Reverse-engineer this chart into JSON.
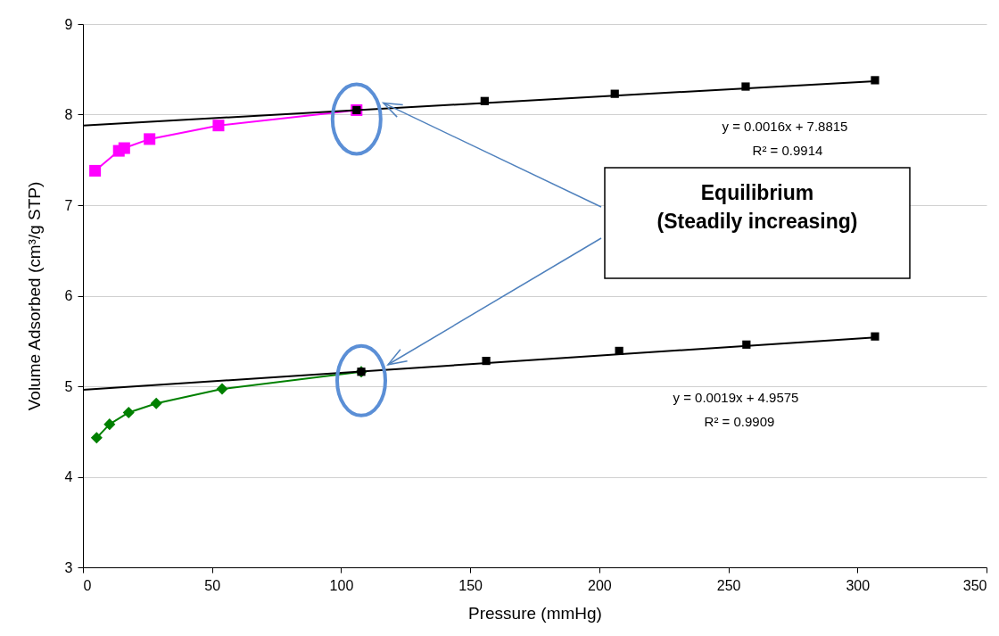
{
  "chart_data": {
    "type": "line",
    "xlabel": "Pressure (mmHg)",
    "ylabel": "Volume Adsorbed (cm³/g STP)",
    "xlim": [
      0,
      350
    ],
    "xticks": [
      0,
      50,
      100,
      150,
      200,
      250,
      300,
      350
    ],
    "ylim": [
      3,
      9
    ],
    "yticks": [
      3,
      4,
      5,
      6,
      7,
      8,
      9
    ],
    "grid": "y",
    "series": [
      {
        "type": "line",
        "color": "#ff00ff",
        "marker": "square",
        "x": [
          4.7,
          13.9,
          16.0,
          25.8,
          52.5,
          106
        ],
        "values": [
          7.38,
          7.6,
          7.63,
          7.73,
          7.88,
          8.05
        ]
      },
      {
        "type": "scatter",
        "color": "#000000",
        "marker": "square",
        "x": [
          106,
          155.6,
          206,
          256.7,
          306.8
        ],
        "values": [
          8.05,
          8.15,
          8.23,
          8.31,
          8.38
        ]
      },
      {
        "type": "line",
        "color": "#008000",
        "marker": "diamond",
        "x": [
          5.3,
          10.3,
          17.7,
          28.4,
          53.9,
          107.8
        ],
        "values": [
          4.43,
          4.58,
          4.71,
          4.81,
          4.97,
          5.16
        ]
      },
      {
        "type": "scatter",
        "color": "#000000",
        "marker": "square",
        "x": [
          107.8,
          156.2,
          207.7,
          257,
          306.8
        ],
        "values": [
          5.16,
          5.28,
          5.39,
          5.46,
          5.55
        ]
      },
      {
        "type": "line",
        "color": "#000000",
        "marker": "none",
        "x": [
          0,
          307
        ],
        "values": [
          7.88,
          8.37
        ]
      },
      {
        "type": "line",
        "color": "#000000",
        "marker": "none",
        "x": [
          0,
          307
        ],
        "values": [
          4.96,
          5.54
        ]
      }
    ],
    "annotations": [
      "y = 0.0016x + 7.8815",
      "R² = 0.9914",
      "y = 0.0019x + 4.9575",
      "R² = 0.9909",
      "Equilibrium\n(Steadily increasing)"
    ]
  }
}
